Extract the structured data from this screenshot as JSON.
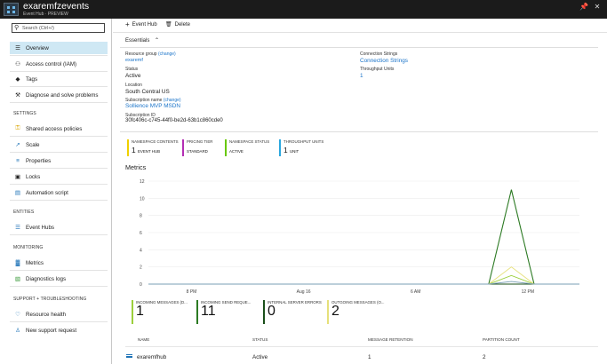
{
  "window": {
    "title": "exaremfzevents",
    "subtitle": "Event Hub · PREVIEW",
    "pin_icon": "📌",
    "close_icon": "✕"
  },
  "sidebar": {
    "search_placeholder": "Search (Ctrl+/)",
    "items": [
      {
        "label": "Overview",
        "icon": "☰"
      },
      {
        "label": "Access control (IAM)",
        "icon": "⚇"
      },
      {
        "label": "Tags",
        "icon": "◆"
      },
      {
        "label": "Diagnose and solve problems",
        "icon": "⚒"
      }
    ],
    "settings_header": "SETTINGS",
    "settings_items": [
      {
        "label": "Shared access policies",
        "icon": "⚿"
      },
      {
        "label": "Scale",
        "icon": "↗"
      },
      {
        "label": "Properties",
        "icon": "≡"
      },
      {
        "label": "Locks",
        "icon": "▣"
      },
      {
        "label": "Automation script",
        "icon": "▤"
      }
    ],
    "entities_header": "ENTITIES",
    "entities_items": [
      {
        "label": "Event Hubs",
        "icon": "☰"
      }
    ],
    "monitoring_header": "MONITORING",
    "monitoring_items": [
      {
        "label": "Metrics",
        "icon": "▓"
      },
      {
        "label": "Diagnostics logs",
        "icon": "▧"
      }
    ],
    "support_header": "SUPPORT + TROUBLESHOOTING",
    "support_items": [
      {
        "label": "Resource health",
        "icon": "♡"
      },
      {
        "label": "New support request",
        "icon": "♙"
      }
    ]
  },
  "toolbar": {
    "add_label": "Event Hub",
    "add_icon": "+",
    "delete_label": "Delete",
    "delete_icon": "🗑"
  },
  "essentials": {
    "title": "Essentials",
    "chevron": "⌃",
    "resource_group_label": "Resource group",
    "change": "(change)",
    "resource_group": "exaremf",
    "status_label": "Status",
    "status": "Active",
    "location_label": "Location",
    "location": "South Central US",
    "subscription_label": "Subscription name",
    "subscription": "Sollience MVP MSDN",
    "subscription_id_label": "Subscription ID",
    "subscription_id": "30fc406c-c745-44f0-be2d-63b1c860cde0",
    "connection_label": "Connection Strings",
    "connection": "Connection Strings",
    "throughput_label": "Throughput Units",
    "throughput": "1"
  },
  "tiles": [
    {
      "label": "NAMESPACE CONTENTS",
      "value": "1",
      "unit": "EVENT HUB",
      "color": "#f0d000"
    },
    {
      "label": "PRICING TIER",
      "value": "",
      "unit": "STANDARD",
      "color": "#b42fb4"
    },
    {
      "label": "NAMESPACE STATUS",
      "value": "",
      "unit": "ACTIVE",
      "color": "#68c800"
    },
    {
      "label": "THROUGHPUT UNITS",
      "value": "1",
      "unit": "UNIT",
      "color": "#2aa7de"
    }
  ],
  "metrics": {
    "title": "Metrics"
  },
  "chart_data": {
    "type": "line",
    "y_ticks": [
      "12",
      "10",
      "8",
      "6",
      "4",
      "2",
      "0"
    ],
    "x_ticks": [
      "8 PM",
      "Aug 16",
      "6 AM",
      "12 PM"
    ],
    "ylim": [
      0,
      12
    ],
    "x": [
      0,
      1,
      2,
      3,
      4,
      5,
      6,
      7,
      8,
      9,
      10,
      11,
      12,
      13,
      14,
      15,
      16,
      17,
      18,
      19
    ],
    "series": [
      {
        "name": "INCOMING MESSAGES (D...",
        "color": "#9ccf3c",
        "values": [
          0,
          0,
          0,
          0,
          0,
          0,
          0,
          0,
          0,
          0,
          0,
          0,
          0,
          0,
          0,
          0,
          1,
          0,
          0,
          0
        ]
      },
      {
        "name": "INCOMING SEND REQUE...",
        "color": "#2c7a23",
        "values": [
          0,
          0,
          0,
          0,
          0,
          0,
          0,
          0,
          0,
          0,
          0,
          0,
          0,
          0,
          0,
          0,
          11,
          0,
          0,
          0
        ]
      },
      {
        "name": "INTERNAL SERVER ERRORS",
        "color": "#1a4f1a",
        "values": [
          0,
          0,
          0,
          0,
          0,
          0,
          0,
          0,
          0,
          0,
          0,
          0,
          0,
          0,
          0,
          0,
          0,
          0,
          0,
          0
        ]
      },
      {
        "name": "OUTGOING MESSAGES (O...",
        "color": "#e6e07a",
        "values": [
          0,
          0,
          0,
          0,
          0,
          0,
          0,
          0,
          0,
          0,
          0,
          0,
          0,
          0,
          0,
          0,
          2,
          0,
          0,
          0
        ]
      },
      {
        "name": "",
        "color": "#7a9fb5",
        "values": [
          0,
          0,
          0,
          0,
          0,
          0,
          0,
          0,
          0,
          0,
          0,
          0,
          0,
          0,
          0,
          0,
          0.3,
          0,
          0,
          0
        ]
      }
    ]
  },
  "metric_tiles": [
    {
      "label": "INCOMING MESSAGES (D...",
      "value": "1",
      "color": "#9ccf3c"
    },
    {
      "label": "INCOMING SEND REQUE...",
      "value": "11",
      "color": "#2c7a23"
    },
    {
      "label": "INTERNAL SERVER ERRORS",
      "value": "0",
      "color": "#1a4f1a"
    },
    {
      "label": "OUTGOING MESSAGES (O...",
      "value": "2",
      "color": "#e6e07a"
    }
  ],
  "table": {
    "headers": [
      "NAME",
      "STATUS",
      "MESSAGE RETENTION",
      "PARTITION COUNT"
    ],
    "rows": [
      {
        "name": "exaremfhub",
        "status": "Active",
        "retention": "1",
        "partitions": "2"
      }
    ]
  }
}
